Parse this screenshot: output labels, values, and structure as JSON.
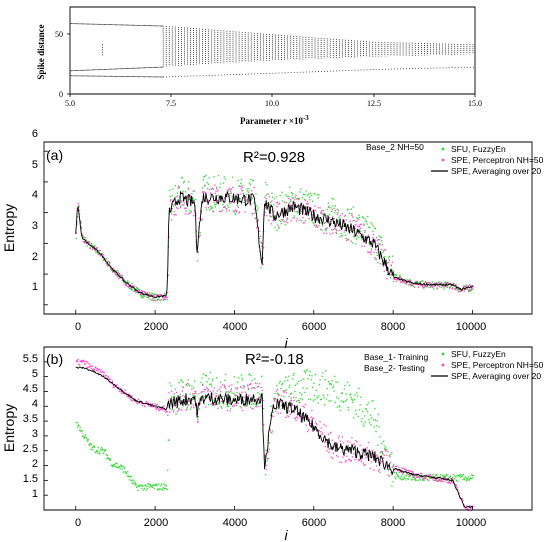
{
  "colors": {
    "fuzzy": "#22dd22",
    "perceptron": "#ff44cc",
    "avg": "#000000",
    "top": "#000000",
    "bg": "#ffffff"
  },
  "top": {
    "xlabel_main": "Parameter ",
    "xlabel_var": "r",
    "xlabel_exp": " ×10",
    "xlabel_sup": "-3",
    "ylabel": "Spike distance",
    "xticks": [
      "5.0",
      "7.5",
      "10.0",
      "12.5",
      "15.0"
    ],
    "yticks": [
      "0",
      "50"
    ]
  },
  "panel_a": {
    "tag": "(a)",
    "r2": "R²=0.928",
    "note": "Base_2 NH=50",
    "ylabel": "Entropy",
    "xlabel": "i",
    "xticks": [
      "0",
      "2000",
      "4000",
      "6000",
      "8000",
      "10000"
    ],
    "yticks": [
      "1",
      "2",
      "3",
      "4",
      "5",
      "6"
    ],
    "legend": [
      "SFU, FuzzyEn",
      "SPE, Perceptron NH=50",
      "SPE, Averaging over 20"
    ]
  },
  "panel_b": {
    "tag": "(b)",
    "r2": "R²=-0.18",
    "note1": "Base_1- Training",
    "note2": "Base_2- Testing",
    "ylabel": "Entropy",
    "xlabel": "i",
    "xticks": [
      "0",
      "2000",
      "4000",
      "6000",
      "8000",
      "10000"
    ],
    "yticks": [
      "1",
      "1.5",
      "2",
      "2.5",
      "3",
      "3.5",
      "4",
      "4.5",
      "5",
      "5.5"
    ],
    "legend": [
      "SFU, FuzzyEn",
      "SPE, Perceptron NH=50",
      "SPE, Averaging over 20"
    ]
  },
  "chart_data": [
    {
      "type": "scatter",
      "xlabel": "Parameter r ×10-3",
      "ylabel": "Spike distance",
      "xlim": [
        5,
        15
      ],
      "ylim": [
        0,
        70
      ],
      "series": [
        {
          "description": "bifurcation envelope upper",
          "x": [
            5.0,
            7.3,
            10.0,
            12.5,
            15.0
          ],
          "y": [
            57,
            55,
            48,
            42,
            40
          ]
        },
        {
          "description": "bifurcation envelope lower",
          "x": [
            5.0,
            7.3,
            10.0,
            12.5,
            15.0
          ],
          "y": [
            19,
            22,
            27,
            30,
            32
          ]
        },
        {
          "description": "outer low branch",
          "x": [
            5.0,
            7.3,
            10.0,
            12.5,
            15.0
          ],
          "y": [
            15,
            14,
            17,
            20,
            22
          ]
        }
      ]
    },
    {
      "type": "line",
      "title": "(a)",
      "xlabel": "i",
      "ylabel": "Entropy",
      "xlim": [
        -800,
        11500
      ],
      "ylim": [
        0.7,
        6.3
      ],
      "series": [
        {
          "name": "SFU, FuzzyEn",
          "x": [
            0,
            50,
            150,
            300,
            600,
            900,
            1200,
            1600,
            2000,
            2300,
            2350,
            2600,
            3000,
            3050,
            3200,
            3800,
            4500,
            4700,
            4750,
            5000,
            5500,
            6000,
            6500,
            7000,
            7500,
            8000,
            8500,
            9000,
            9500,
            9700,
            10000
          ],
          "y": [
            3.3,
            4.3,
            3.2,
            3.0,
            2.7,
            2.2,
            1.8,
            1.4,
            1.25,
            1.3,
            4.2,
            4.6,
            4.4,
            2.8,
            4.7,
            4.6,
            4.5,
            2.2,
            4.6,
            4.0,
            4.4,
            4.1,
            3.9,
            3.6,
            3.2,
            2.0,
            1.7,
            1.65,
            1.65,
            1.5,
            1.6
          ]
        },
        {
          "name": "SPE, Perceptron NH=50",
          "x": [
            0,
            50,
            150,
            300,
            600,
            900,
            1200,
            1600,
            2000,
            2300,
            2350,
            2600,
            3000,
            3050,
            3200,
            3800,
            4500,
            4700,
            4750,
            5000,
            5500,
            6000,
            6500,
            7000,
            7500,
            8000,
            8500,
            9000,
            9500,
            9700,
            10000
          ],
          "y": [
            3.4,
            4.4,
            3.2,
            3.0,
            2.7,
            2.2,
            1.8,
            1.4,
            1.25,
            1.3,
            4.1,
            4.5,
            4.3,
            2.8,
            4.5,
            4.5,
            4.4,
            2.3,
            4.4,
            3.9,
            4.2,
            3.9,
            3.7,
            3.5,
            3.0,
            1.9,
            1.7,
            1.65,
            1.65,
            1.5,
            1.6
          ]
        },
        {
          "name": "SPE, Averaging over 20",
          "x": [
            0,
            50,
            150,
            300,
            600,
            900,
            1200,
            1600,
            2000,
            2300,
            2350,
            2600,
            3000,
            3050,
            3200,
            3800,
            4500,
            4700,
            4750,
            5000,
            5500,
            6000,
            6500,
            7000,
            7500,
            8000,
            8500,
            9000,
            9500,
            9700,
            10000
          ],
          "y": [
            3.3,
            4.3,
            3.2,
            3.0,
            2.7,
            2.2,
            1.8,
            1.4,
            1.25,
            1.3,
            4.0,
            4.5,
            4.3,
            2.8,
            4.5,
            4.5,
            4.4,
            2.3,
            4.4,
            3.9,
            4.2,
            3.9,
            3.7,
            3.4,
            3.0,
            1.9,
            1.7,
            1.65,
            1.65,
            1.5,
            1.6
          ]
        }
      ]
    },
    {
      "type": "line",
      "title": "(b)",
      "xlabel": "i",
      "ylabel": "Entropy",
      "xlim": [
        -800,
        11500
      ],
      "ylim": [
        0.5,
        6.0
      ],
      "series": [
        {
          "name": "SFU, FuzzyEn",
          "x": [
            0,
            200,
            400,
            700,
            900,
            1200,
            1500,
            2000,
            2300,
            2350,
            3000,
            3050,
            3200,
            4000,
            4700,
            4750,
            5000,
            5500,
            6000,
            6500,
            7000,
            7500,
            8000,
            8500,
            9000,
            9500,
            10000
          ],
          "y": [
            3.5,
            3.0,
            2.6,
            2.5,
            2.1,
            1.9,
            1.3,
            1.3,
            1.3,
            4.3,
            4.5,
            3.8,
            4.6,
            4.5,
            4.6,
            1.9,
            4.3,
            4.6,
            4.7,
            4.6,
            4.2,
            3.6,
            1.7,
            1.6,
            1.6,
            1.6,
            1.6
          ]
        },
        {
          "name": "SPE, Perceptron NH=50",
          "x": [
            0,
            200,
            400,
            700,
            900,
            1200,
            1500,
            2000,
            2300,
            2350,
            3000,
            3050,
            3200,
            4000,
            4700,
            4750,
            5000,
            5500,
            6000,
            6500,
            7000,
            7500,
            8000,
            8500,
            9000,
            9500,
            9700,
            9800,
            10000
          ],
          "y": [
            5.5,
            5.5,
            5.3,
            5.1,
            4.8,
            4.5,
            4.2,
            4.0,
            3.9,
            4.2,
            4.4,
            3.8,
            4.4,
            4.3,
            4.4,
            2.0,
            4.2,
            4.0,
            3.4,
            2.6,
            2.5,
            2.3,
            2.0,
            1.7,
            1.6,
            1.5,
            0.9,
            0.6,
            0.6
          ]
        },
        {
          "name": "SPE, Averaging over 20",
          "x": [
            0,
            200,
            400,
            700,
            900,
            1200,
            1500,
            2000,
            2300,
            2350,
            3000,
            3050,
            3200,
            4000,
            4700,
            4750,
            5000,
            5500,
            6000,
            6500,
            7000,
            7500,
            8000,
            8500,
            9000,
            9500,
            9700,
            9800,
            10000
          ],
          "y": [
            5.3,
            5.3,
            5.2,
            5.0,
            4.8,
            4.5,
            4.2,
            4.0,
            3.9,
            4.1,
            4.3,
            3.8,
            4.3,
            4.2,
            4.3,
            2.0,
            4.1,
            3.9,
            3.3,
            2.6,
            2.5,
            2.3,
            1.9,
            1.7,
            1.6,
            1.5,
            0.9,
            0.6,
            0.6
          ]
        }
      ]
    }
  ]
}
